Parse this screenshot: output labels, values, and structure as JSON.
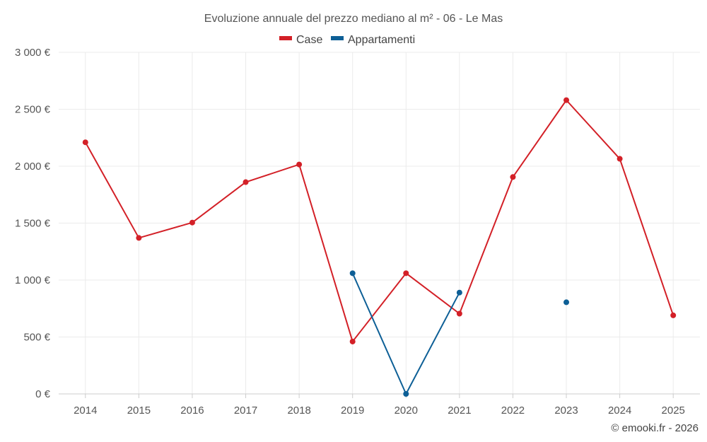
{
  "chart_data": {
    "type": "line",
    "title": "Evoluzione annuale del prezzo mediano al m² - 06 - Le Mas",
    "categories": [
      "2014",
      "2015",
      "2016",
      "2017",
      "2018",
      "2019",
      "2020",
      "2021",
      "2022",
      "2023",
      "2024",
      "2025"
    ],
    "ylim": [
      0,
      3000
    ],
    "yticks": [
      0,
      500,
      1000,
      1500,
      2000,
      2500,
      3000
    ],
    "ytick_labels": [
      "0 €",
      "500 €",
      "1 000 €",
      "1 500 €",
      "2 000 €",
      "2 500 €",
      "3 000 €"
    ],
    "grid": true,
    "legend_position": "top-center",
    "series": [
      {
        "name": "Case",
        "color": "#d32027",
        "values": [
          2210,
          1370,
          1505,
          1860,
          2015,
          460,
          1060,
          705,
          1905,
          2580,
          2065,
          690
        ]
      },
      {
        "name": "Appartamenti",
        "color": "#0d5f96",
        "values": [
          null,
          null,
          null,
          null,
          null,
          1060,
          0,
          890,
          null,
          805,
          null,
          null
        ]
      }
    ]
  },
  "credit": "© emooki.fr - 2026"
}
